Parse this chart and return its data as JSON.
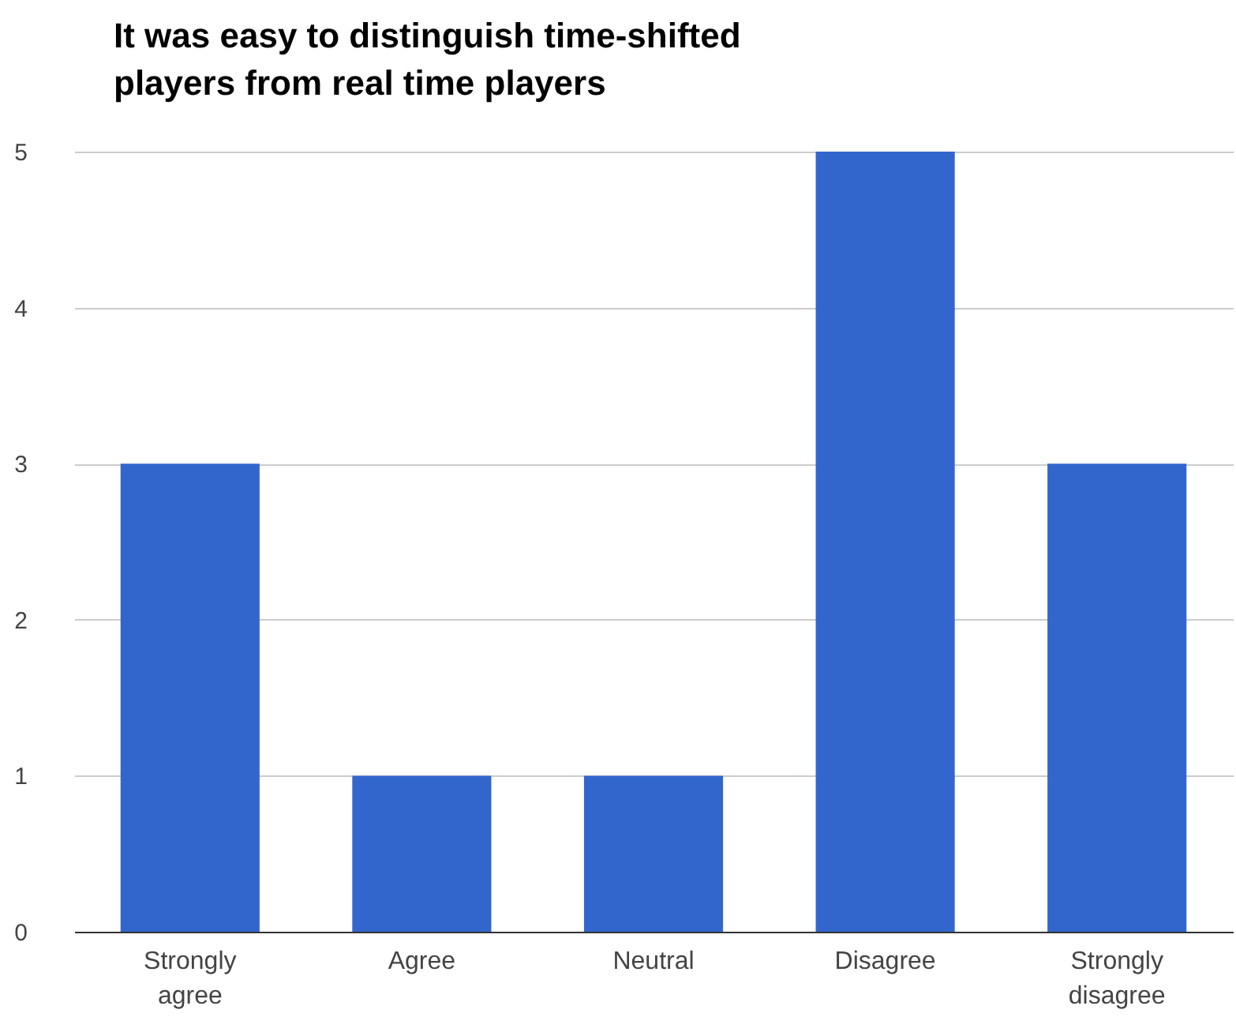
{
  "chart_data": {
    "type": "bar",
    "title": "It was easy to distinguish time-shifted players from real time players",
    "categories": [
      "Strongly agree",
      "Agree",
      "Neutral",
      "Disagree",
      "Strongly disagree"
    ],
    "values": [
      3,
      1,
      1,
      5,
      3
    ],
    "color": "#3366cc",
    "ylim": [
      0,
      5
    ],
    "yticks": [
      0,
      1,
      2,
      3,
      4,
      5
    ],
    "grid": "y"
  }
}
